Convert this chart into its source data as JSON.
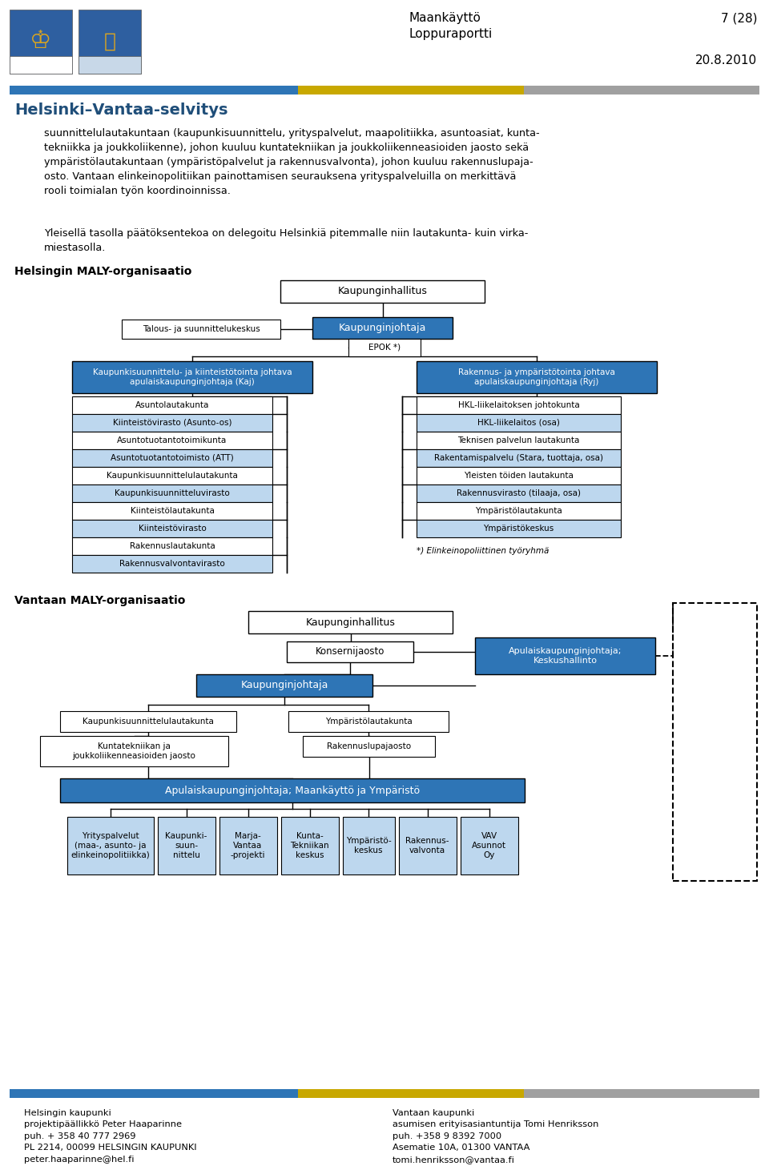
{
  "page_title_left": "Maankäyttö",
  "page_title_right": "7 (28)",
  "page_subtitle": "Loppuraportti",
  "page_date": "20.8.2010",
  "section_title": "Helsinki–Vantaa-selvitys",
  "body_text1": "suunnittelulautakuntaan (kaupunkisuunnittelu, yrityspalvelut, maapolitiikka, asuntoasiat, kunta-\ntekniikka ja joukkoliikenne), johon kuuluu kuntatekniikan ja joukkoliikenneasioiden jaosto sekä\nympäristölautakuntaan (ympäristöpalvelut ja rakennusvalvonta), johon kuuluu rakennuslupaja-\nosto. Vantaan elinkeinopolitiikan painottamisen seurauksena yrityspalveluilla on merkittävä\nrooli toimialan työn koordinoinnissa.",
  "body_text2": "Yleisellä tasolla päätöksentekoa on delegoitu Helsinkiä pitemmalle niin lautakunta- kuin virka-\nmiestasolla.",
  "hely_title": "Helsingin MALY-organisaatio",
  "vantaa_title": "Vantaan MALY-organisaatio",
  "footer_left": "Helsingin kaupunki\nprojektipäällikkö Peter Haaparinne\npuh. + 358 40 777 2969\nPL 2214, 00099 HELSINGIN KAUPUNKI\npeter.haaparinne@hel.fi",
  "footer_right": "Vantaan kaupunki\nasumisen erityisasiantuntija Tomi Henriksson\npuh. +358 9 8392 7000\nAsematie 10A, 01300 VANTAA\ntomi.henriksson@vantaa.fi",
  "color_blue": "#2E75B6",
  "color_lightblue": "#BDD7EE",
  "color_white": "#FFFFFF",
  "color_yellow": "#C8A800",
  "color_gray": "#A0A0A0",
  "color_section_title": "#1F4E79",
  "color_border": "#000000",
  "color_bg": "#FFFFFF"
}
